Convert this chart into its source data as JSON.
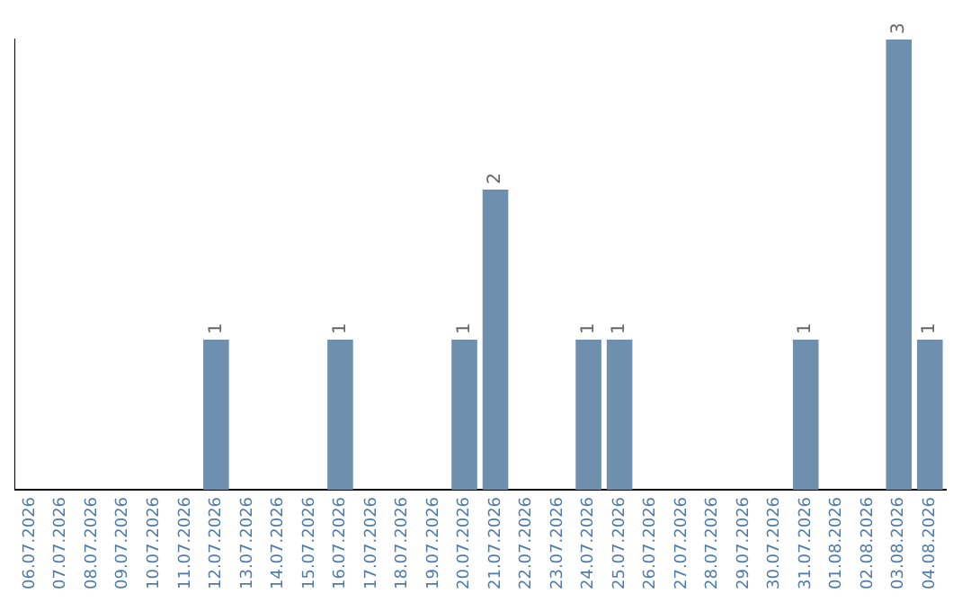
{
  "chart_data": {
    "type": "bar",
    "categories": [
      "06.07.2026",
      "07.07.2026",
      "08.07.2026",
      "09.07.2026",
      "10.07.2026",
      "11.07.2026",
      "12.07.2026",
      "13.07.2026",
      "14.07.2026",
      "15.07.2026",
      "16.07.2026",
      "17.07.2026",
      "18.07.2026",
      "19.07.2026",
      "20.07.2026",
      "21.07.2026",
      "22.07.2026",
      "23.07.2026",
      "24.07.2026",
      "25.07.2026",
      "26.07.2026",
      "27.07.2026",
      "28.07.2026",
      "29.07.2026",
      "30.07.2026",
      "31.07.2026",
      "01.08.2026",
      "02.08.2026",
      "03.08.2026",
      "04.08.2026"
    ],
    "values": [
      0,
      0,
      0,
      0,
      0,
      0,
      1,
      0,
      0,
      0,
      1,
      0,
      0,
      0,
      1,
      2,
      0,
      0,
      1,
      1,
      0,
      0,
      0,
      0,
      0,
      1,
      0,
      0,
      3,
      1
    ],
    "value_labels": [
      null,
      null,
      null,
      null,
      null,
      null,
      "1",
      null,
      null,
      null,
      "1",
      null,
      null,
      null,
      "1",
      "2",
      null,
      null,
      "1",
      "1",
      null,
      null,
      null,
      null,
      null,
      "1",
      null,
      null,
      "3",
      "1"
    ],
    "color": "#6f8fae",
    "tick_labels": "x",
    "grid": false,
    "legend": false
  }
}
